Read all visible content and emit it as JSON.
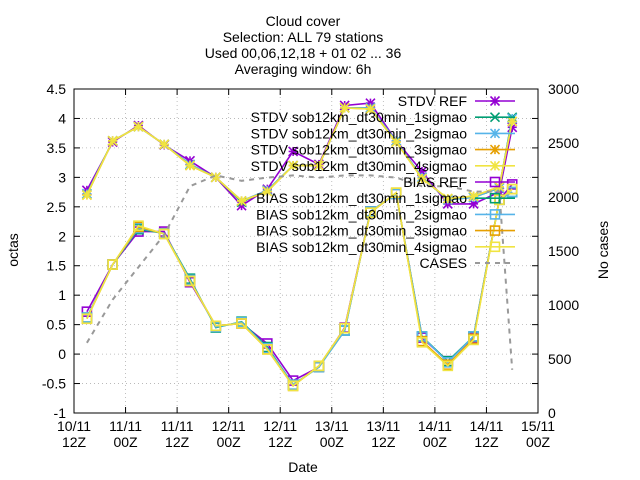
{
  "chart_data": {
    "type": "line",
    "title_lines": [
      "Cloud cover",
      "Selection: ALL     79 stations",
      "Used 00,06,12,18 + 01 02 ... 36",
      "Averaging window:  6h"
    ],
    "xlabel": "Date",
    "ylabel": "octas",
    "y2label": "No cases",
    "x_ticks": [
      {
        "t": 0,
        "line1": "10/11",
        "line2": "12Z"
      },
      {
        "t": 12,
        "line1": "11/11",
        "line2": "00Z"
      },
      {
        "t": 24,
        "line1": "11/11",
        "line2": "12Z"
      },
      {
        "t": 36,
        "line1": "12/11",
        "line2": "00Z"
      },
      {
        "t": 48,
        "line1": "12/11",
        "line2": "12Z"
      },
      {
        "t": 60,
        "line1": "13/11",
        "line2": "00Z"
      },
      {
        "t": 72,
        "line1": "13/11",
        "line2": "12Z"
      },
      {
        "t": 84,
        "line1": "14/11",
        "line2": "00Z"
      },
      {
        "t": 96,
        "line1": "14/11",
        "line2": "12Z"
      },
      {
        "t": 108,
        "line1": "15/11",
        "line2": "00Z"
      }
    ],
    "xlim": [
      0,
      108
    ],
    "ylim": [
      -1,
      4.5
    ],
    "y_ticks": [
      "-1",
      "-0.5",
      "0",
      "0.5",
      "1",
      "1.5",
      "2",
      "2.5",
      "3",
      "3.5",
      "4",
      "4.5"
    ],
    "y2lim": [
      0,
      3000
    ],
    "y2_ticks": [
      "0",
      "500",
      "1000",
      "1500",
      "2000",
      "2500",
      "3000"
    ],
    "grid": true,
    "legend_position": "top-right",
    "series": [
      {
        "name": "STDV REF",
        "color": "#9400d3",
        "marker": "star",
        "x": [
          3,
          9,
          15,
          21,
          27,
          33,
          39,
          45,
          51,
          57,
          63,
          69,
          75,
          81,
          87,
          93,
          99,
          102
        ],
        "values": [
          2.78,
          3.6,
          3.88,
          3.55,
          3.28,
          3.0,
          2.52,
          2.8,
          3.44,
          3.22,
          4.22,
          4.26,
          3.62,
          3.1,
          2.55,
          2.55,
          2.75,
          3.85
        ]
      },
      {
        "name": "STDV sob12km_dt30min_1sigmao",
        "color": "#009e73",
        "marker": "x",
        "x": [
          3,
          9,
          15,
          21,
          27,
          33,
          39,
          45,
          51,
          57,
          63,
          69,
          75,
          81,
          87,
          93,
          99,
          102
        ],
        "values": [
          2.72,
          3.62,
          3.86,
          3.56,
          3.22,
          3.0,
          2.58,
          2.78,
          3.2,
          3.2,
          4.18,
          4.18,
          3.62,
          3.0,
          2.62,
          2.66,
          2.82,
          4.02
        ]
      },
      {
        "name": "STDV sob12km_dt30min_2sigmao",
        "color": "#56b4e9",
        "marker": "star",
        "x": [
          3,
          9,
          15,
          21,
          27,
          33,
          39,
          45,
          51,
          57,
          63,
          69,
          75,
          81,
          87,
          93,
          99,
          102
        ],
        "values": [
          2.72,
          3.62,
          3.86,
          3.56,
          3.22,
          3.0,
          2.6,
          2.78,
          3.2,
          3.2,
          4.18,
          4.18,
          3.62,
          3.0,
          2.62,
          2.66,
          2.82,
          4.0
        ]
      },
      {
        "name": "STDV sob12km_dt30min_3sigmao",
        "color": "#e69f00",
        "marker": "star",
        "x": [
          3,
          9,
          15,
          21,
          27,
          33,
          39,
          45,
          51,
          57,
          63,
          69,
          75,
          81,
          87,
          93,
          99,
          102
        ],
        "values": [
          2.7,
          3.62,
          3.86,
          3.56,
          3.2,
          3.0,
          2.6,
          2.76,
          3.2,
          3.2,
          4.18,
          4.16,
          3.6,
          2.98,
          2.64,
          2.68,
          2.84,
          3.95
        ]
      },
      {
        "name": "STDV sob12km_dt30min_4sigmao",
        "color": "#f0e442",
        "marker": "star",
        "x": [
          3,
          9,
          15,
          21,
          27,
          33,
          39,
          45,
          51,
          57,
          63,
          69,
          75,
          81,
          87,
          93,
          99,
          102
        ],
        "values": [
          2.7,
          3.62,
          3.86,
          3.56,
          3.2,
          3.0,
          2.6,
          2.76,
          3.2,
          3.2,
          4.18,
          4.16,
          3.6,
          2.98,
          2.64,
          2.68,
          2.84,
          3.95
        ]
      },
      {
        "name": "BIAS REF",
        "color": "#9400d3",
        "marker": "square",
        "x": [
          3,
          9,
          15,
          21,
          27,
          33,
          39,
          45,
          51,
          57,
          63,
          69,
          75,
          81,
          87,
          93,
          99,
          102
        ],
        "values": [
          0.72,
          1.52,
          2.08,
          2.08,
          1.22,
          0.48,
          0.52,
          0.18,
          -0.45,
          -0.22,
          0.45,
          2.42,
          2.72,
          0.28,
          -0.12,
          0.28,
          2.62,
          2.88
        ]
      },
      {
        "name": "BIAS sob12km_dt30min_1sigmao",
        "color": "#009e73",
        "marker": "square",
        "x": [
          3,
          9,
          15,
          21,
          27,
          33,
          39,
          45,
          51,
          57,
          63,
          69,
          75,
          81,
          87,
          93,
          99,
          102
        ],
        "values": [
          0.62,
          1.52,
          2.12,
          2.05,
          1.28,
          0.45,
          0.55,
          0.12,
          -0.52,
          -0.22,
          0.4,
          2.42,
          2.72,
          0.3,
          -0.12,
          0.3,
          2.62,
          2.75
        ]
      },
      {
        "name": "BIAS sob12km_dt30min_2sigmao",
        "color": "#56b4e9",
        "marker": "square",
        "x": [
          3,
          9,
          15,
          21,
          27,
          33,
          39,
          45,
          51,
          57,
          63,
          69,
          75,
          81,
          87,
          93,
          99,
          102
        ],
        "values": [
          0.62,
          1.52,
          2.14,
          2.05,
          1.26,
          0.46,
          0.54,
          0.1,
          -0.52,
          -0.22,
          0.4,
          2.42,
          2.72,
          0.3,
          -0.14,
          0.3,
          2.62,
          2.75
        ]
      },
      {
        "name": "BIAS sob12km_dt30min_3sigmao",
        "color": "#e69f00",
        "marker": "square",
        "x": [
          3,
          9,
          15,
          21,
          27,
          33,
          39,
          45,
          51,
          57,
          63,
          69,
          75,
          81,
          87,
          93,
          99,
          102
        ],
        "values": [
          0.6,
          1.52,
          2.16,
          2.04,
          1.24,
          0.48,
          0.52,
          0.08,
          -0.54,
          -0.2,
          0.44,
          2.4,
          2.74,
          0.22,
          -0.18,
          0.26,
          2.62,
          2.8
        ]
      },
      {
        "name": "BIAS sob12km_dt30min_4sigmao",
        "color": "#f0e442",
        "marker": "square",
        "x": [
          3,
          9,
          15,
          21,
          27,
          33,
          39,
          45,
          51,
          57,
          63,
          69,
          75,
          81,
          87,
          93,
          99,
          102
        ],
        "values": [
          0.6,
          1.52,
          2.18,
          2.04,
          1.24,
          0.48,
          0.52,
          0.08,
          -0.54,
          -0.2,
          0.44,
          2.4,
          2.74,
          0.2,
          -0.2,
          0.24,
          2.62,
          2.8
        ]
      },
      {
        "name": "CASES",
        "color": "#999999",
        "marker": "none",
        "dashed": true,
        "axis": "y2",
        "x": [
          3,
          9,
          15,
          21,
          27,
          33,
          39,
          45,
          51,
          57,
          63,
          69,
          75,
          81,
          87,
          93,
          99,
          102
        ],
        "values": [
          650,
          1050,
          1350,
          1650,
          2100,
          2200,
          2150,
          2180,
          2200,
          2180,
          2200,
          2200,
          2180,
          2100,
          2100,
          2050,
          2050,
          400
        ]
      }
    ]
  }
}
